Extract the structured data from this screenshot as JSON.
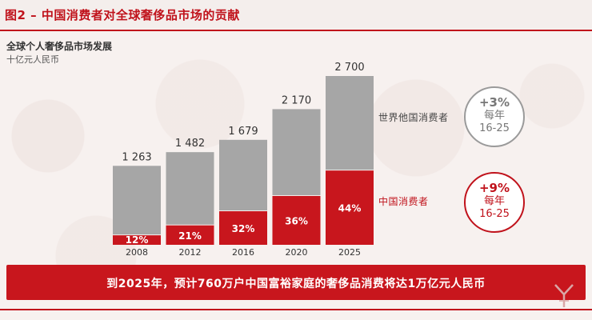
{
  "header": {
    "title": "图2 – 中国消费者对全球奢侈品市场的贡献"
  },
  "chart_data": {
    "type": "bar",
    "title": "全球个人奢侈品市场发展",
    "unit": "十亿元人民币",
    "categories": [
      "2008",
      "2012",
      "2016",
      "2020",
      "2025"
    ],
    "totals": [
      1263,
      1482,
      1679,
      2170,
      2700
    ],
    "total_labels": [
      "1 263",
      "1 482",
      "1 679",
      "2 170",
      "2 700"
    ],
    "china_share_labels": [
      "12%",
      "21%",
      "32%",
      "36%",
      "44%"
    ],
    "series": [
      {
        "name": "世界他国消费者",
        "values": [
          1111,
          1171,
          1142,
          1389,
          1512
        ],
        "color": "#a6a6a6"
      },
      {
        "name": "中国消费者",
        "values": [
          152,
          311,
          537,
          781,
          1188
        ],
        "color": "#c8161d"
      }
    ],
    "ylim": [
      0,
      2700
    ]
  },
  "badges": {
    "world": {
      "rate": "+3%",
      "per": "每年",
      "range": "16-25"
    },
    "china": {
      "rate": "+9%",
      "per": "每年",
      "range": "16-25"
    }
  },
  "banner": {
    "text": "到2025年，预计760万户中国富裕家庭的奢侈品消费将达1万亿元人民币"
  },
  "colors": {
    "accent": "#c0121b",
    "gray_bar": "#a6a6a6",
    "red_bar": "#c8161d"
  }
}
